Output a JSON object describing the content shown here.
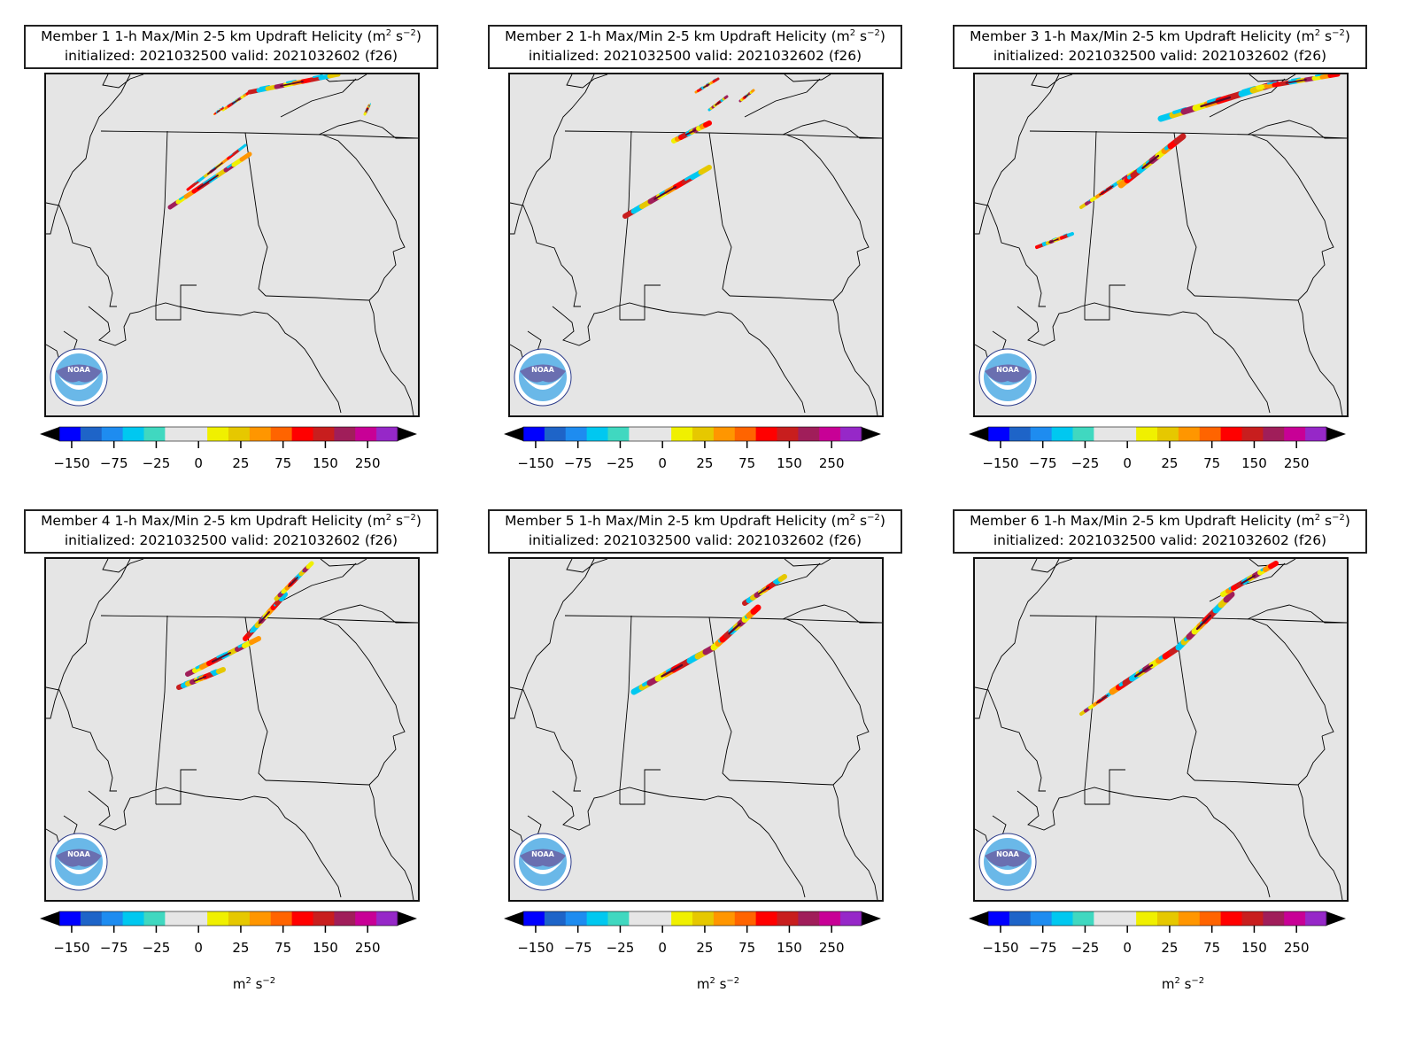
{
  "title_line1_suffix": "1-h Max/Min 2-5 km Updraft Helicity (m",
  "title_line1_exp": "2",
  "title_line1_mid": " s",
  "title_line1_exp2": "−2",
  "title_line1_end": ")",
  "title_line2": "initialized: 2021032500 valid: 2021032602 (f26)",
  "logo_text": "NOAA",
  "unit_label_base": "m",
  "unit_label_exp": "2",
  "unit_label_mid": " s",
  "unit_label_exp2": "−2",
  "members": [
    {
      "label": "Member 1"
    },
    {
      "label": "Member 2"
    },
    {
      "label": "Member 3"
    },
    {
      "label": "Member 4"
    },
    {
      "label": "Member 5"
    },
    {
      "label": "Member 6"
    }
  ],
  "colorbar": {
    "ticks": [
      "−150",
      "−75",
      "−25",
      "0",
      "25",
      "75",
      "150",
      "250"
    ],
    "colors": [
      "#0000ff",
      "#1e64c8",
      "#1e8cf0",
      "#00c8f0",
      "#40d8c0",
      "#e6e6e6",
      "#e6e6e6",
      "#f0f000",
      "#e6c800",
      "#ff9600",
      "#ff6400",
      "#ff0000",
      "#c81e1e",
      "#a01e5a",
      "#c80096",
      "#9628c8"
    ],
    "under_color": "#000000",
    "over_color": "#000000"
  }
}
